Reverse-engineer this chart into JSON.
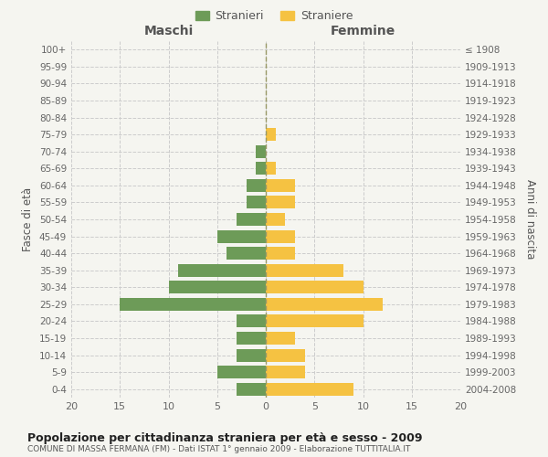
{
  "age_groups": [
    "0-4",
    "5-9",
    "10-14",
    "15-19",
    "20-24",
    "25-29",
    "30-34",
    "35-39",
    "40-44",
    "45-49",
    "50-54",
    "55-59",
    "60-64",
    "65-69",
    "70-74",
    "75-79",
    "80-84",
    "85-89",
    "90-94",
    "95-99",
    "100+"
  ],
  "birth_years": [
    "2004-2008",
    "1999-2003",
    "1994-1998",
    "1989-1993",
    "1984-1988",
    "1979-1983",
    "1974-1978",
    "1969-1973",
    "1964-1968",
    "1959-1963",
    "1954-1958",
    "1949-1953",
    "1944-1948",
    "1939-1943",
    "1934-1938",
    "1929-1933",
    "1924-1928",
    "1919-1923",
    "1914-1918",
    "1909-1913",
    "≤ 1908"
  ],
  "males": [
    3,
    5,
    3,
    3,
    3,
    15,
    10,
    9,
    4,
    5,
    3,
    2,
    2,
    1,
    1,
    0,
    0,
    0,
    0,
    0,
    0
  ],
  "females": [
    9,
    4,
    4,
    3,
    10,
    12,
    10,
    8,
    3,
    3,
    2,
    3,
    3,
    1,
    0,
    1,
    0,
    0,
    0,
    0,
    0
  ],
  "male_color": "#6d9b58",
  "female_color": "#f5c242",
  "background_color": "#f5f5f0",
  "grid_color": "#cccccc",
  "title": "Popolazione per cittadinanza straniera per età e sesso - 2009",
  "subtitle": "COMUNE DI MASSA FERMANA (FM) - Dati ISTAT 1° gennaio 2009 - Elaborazione TUTTITALIA.IT",
  "ylabel_left": "Fasce di età",
  "ylabel_right": "Anni di nascita",
  "xlabel_left": "Maschi",
  "xlabel_right": "Femmine",
  "legend_stranieri": "Stranieri",
  "legend_straniere": "Straniere",
  "xlim": 20,
  "bar_height": 0.75
}
